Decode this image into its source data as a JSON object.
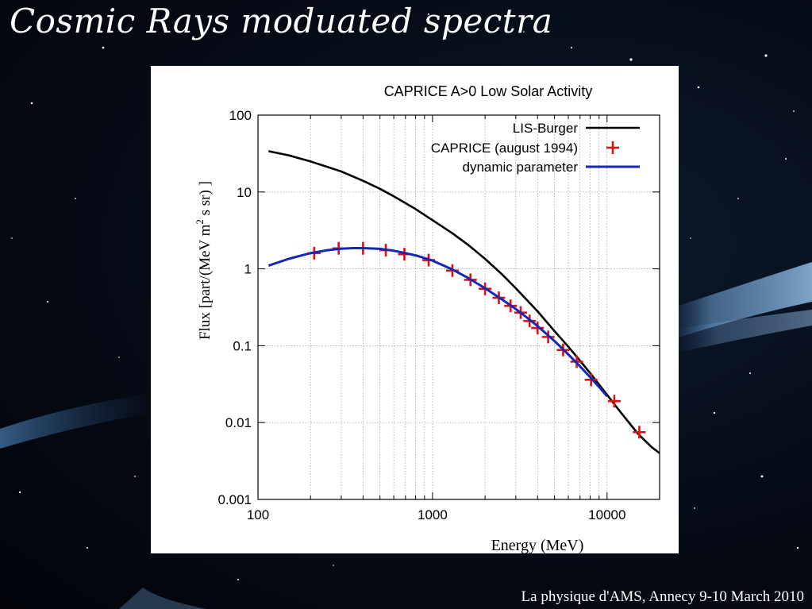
{
  "slide": {
    "title": "Cosmic Rays moduated spectra",
    "footer": "La physique d'AMS, Annecy 9-10 March 2010"
  },
  "chart_data": {
    "type": "line",
    "title": "CAPRICE A>0 Low Solar Activity",
    "xlabel": "Energy (MeV)",
    "ylabel": "Flux [part/(MeV m2 s sr) ]",
    "ylabel_prefix": "Flux [part/(MeV m",
    "ylabel_sup": "2",
    "ylabel_suffix": " s sr) ]",
    "xscale": "log",
    "yscale": "log",
    "xlim": [
      100,
      20000
    ],
    "ylim": [
      0.001,
      100
    ],
    "x_ticks": [
      {
        "value": 100,
        "label": "100"
      },
      {
        "value": 1000,
        "label": "1000"
      },
      {
        "value": 10000,
        "label": "10000"
      }
    ],
    "y_ticks": [
      {
        "value": 0.001,
        "label": "0.001"
      },
      {
        "value": 0.01,
        "label": "0.01"
      },
      {
        "value": 0.1,
        "label": "0.1"
      },
      {
        "value": 1,
        "label": "1"
      },
      {
        "value": 10,
        "label": "10"
      },
      {
        "value": 100,
        "label": "100"
      }
    ],
    "grid": true,
    "legend_position": "top-right",
    "series": [
      {
        "name": "LIS-Burger",
        "style": "line",
        "color": "#000000",
        "x": [
          115,
          150,
          200,
          300,
          400,
          500,
          600,
          800,
          1000,
          1300,
          1600,
          2000,
          2500,
          3000,
          4000,
          5000,
          6000,
          7000,
          8000,
          10000,
          12000,
          15000,
          18000,
          20000
        ],
        "y": [
          34,
          30,
          25,
          18.5,
          14,
          11,
          8.8,
          6.0,
          4.3,
          2.9,
          2.05,
          1.35,
          0.85,
          0.56,
          0.28,
          0.155,
          0.097,
          0.064,
          0.044,
          0.023,
          0.0135,
          0.0072,
          0.0048,
          0.004
        ]
      },
      {
        "name": "CAPRICE (august 1994)",
        "style": "markers",
        "marker": "plus",
        "color": "#dd1111",
        "x": [
          210,
          290,
          400,
          540,
          690,
          950,
          1300,
          1650,
          2000,
          2400,
          2800,
          3200,
          3600,
          4000,
          4600,
          5600,
          6700,
          8100,
          11000,
          15300
        ],
        "y": [
          1.6,
          1.85,
          1.85,
          1.75,
          1.55,
          1.3,
          0.95,
          0.72,
          0.55,
          0.42,
          0.33,
          0.27,
          0.21,
          0.17,
          0.13,
          0.088,
          0.062,
          0.036,
          0.019,
          0.0075
        ]
      },
      {
        "name": "dynamic parameter",
        "style": "line",
        "color": "#1428b4",
        "x": [
          115,
          150,
          200,
          250,
          300,
          350,
          400,
          500,
          600,
          700,
          800,
          1000,
          1300,
          1600,
          2000,
          2500,
          3000,
          3500,
          4000,
          5000,
          6000,
          7000,
          8000,
          9000,
          10000
        ],
        "y": [
          1.1,
          1.35,
          1.6,
          1.75,
          1.83,
          1.86,
          1.86,
          1.82,
          1.72,
          1.6,
          1.5,
          1.28,
          0.98,
          0.76,
          0.56,
          0.4,
          0.3,
          0.23,
          0.18,
          0.115,
          0.077,
          0.054,
          0.039,
          0.029,
          0.022
        ]
      }
    ]
  }
}
